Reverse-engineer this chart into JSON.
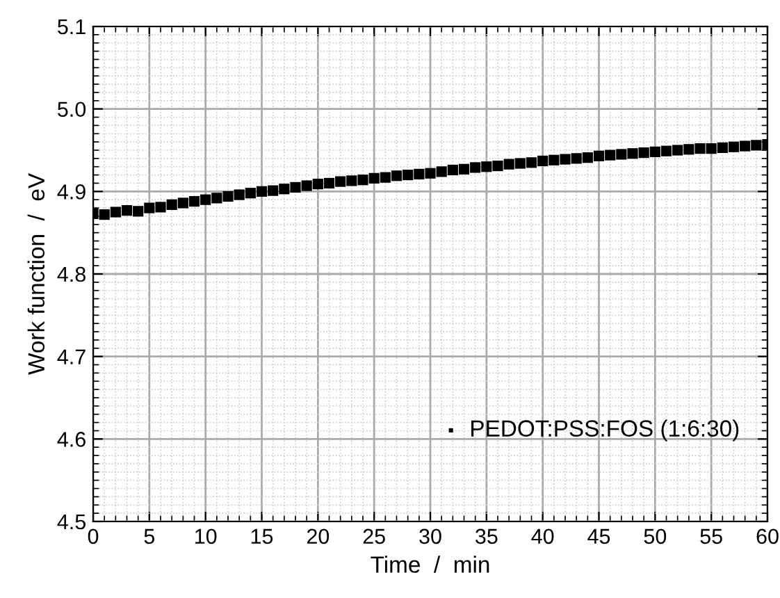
{
  "chart_data": {
    "type": "scatter",
    "xlabel": "Time  /  min",
    "ylabel": "Work function  /  eV",
    "series": [
      {
        "name": "PEDOT:PSS:FOS (1:6:30)",
        "color": "#000000",
        "x": [
          0,
          1,
          2,
          3,
          4,
          5,
          6,
          7,
          8,
          9,
          10,
          11,
          12,
          13,
          14,
          15,
          16,
          17,
          18,
          19,
          20,
          21,
          22,
          23,
          24,
          25,
          26,
          27,
          28,
          29,
          30,
          31,
          32,
          33,
          34,
          35,
          36,
          37,
          38,
          39,
          40,
          41,
          42,
          43,
          44,
          45,
          46,
          47,
          48,
          49,
          50,
          51,
          52,
          53,
          54,
          55,
          56,
          57,
          58,
          59,
          60
        ],
        "values": [
          4.873,
          4.872,
          4.875,
          4.877,
          4.876,
          4.88,
          4.881,
          4.884,
          4.886,
          4.888,
          4.89,
          4.892,
          4.894,
          4.896,
          4.898,
          4.9,
          4.901,
          4.903,
          4.905,
          4.907,
          4.909,
          4.91,
          4.912,
          4.913,
          4.914,
          4.916,
          4.917,
          4.919,
          4.92,
          4.921,
          4.922,
          4.924,
          4.926,
          4.927,
          4.929,
          4.93,
          4.931,
          4.933,
          4.934,
          4.935,
          4.937,
          4.938,
          4.939,
          4.94,
          4.941,
          4.943,
          4.944,
          4.945,
          4.946,
          4.947,
          4.948,
          4.949,
          4.95,
          4.951,
          4.952,
          4.952,
          4.953,
          4.954,
          4.955,
          4.956,
          4.957
        ]
      }
    ],
    "xlim": [
      0,
      60
    ],
    "xticks": [
      0,
      5,
      10,
      15,
      20,
      25,
      30,
      35,
      40,
      45,
      50,
      55,
      60
    ],
    "ylim": [
      4.5,
      5.1
    ],
    "yticks": [
      4.5,
      4.6,
      4.7,
      4.8,
      4.9,
      {
        "value": 5.0,
        "label": "5.0"
      },
      5.1
    ],
    "grid": true,
    "legend": "bottom right",
    "marker": "square"
  }
}
